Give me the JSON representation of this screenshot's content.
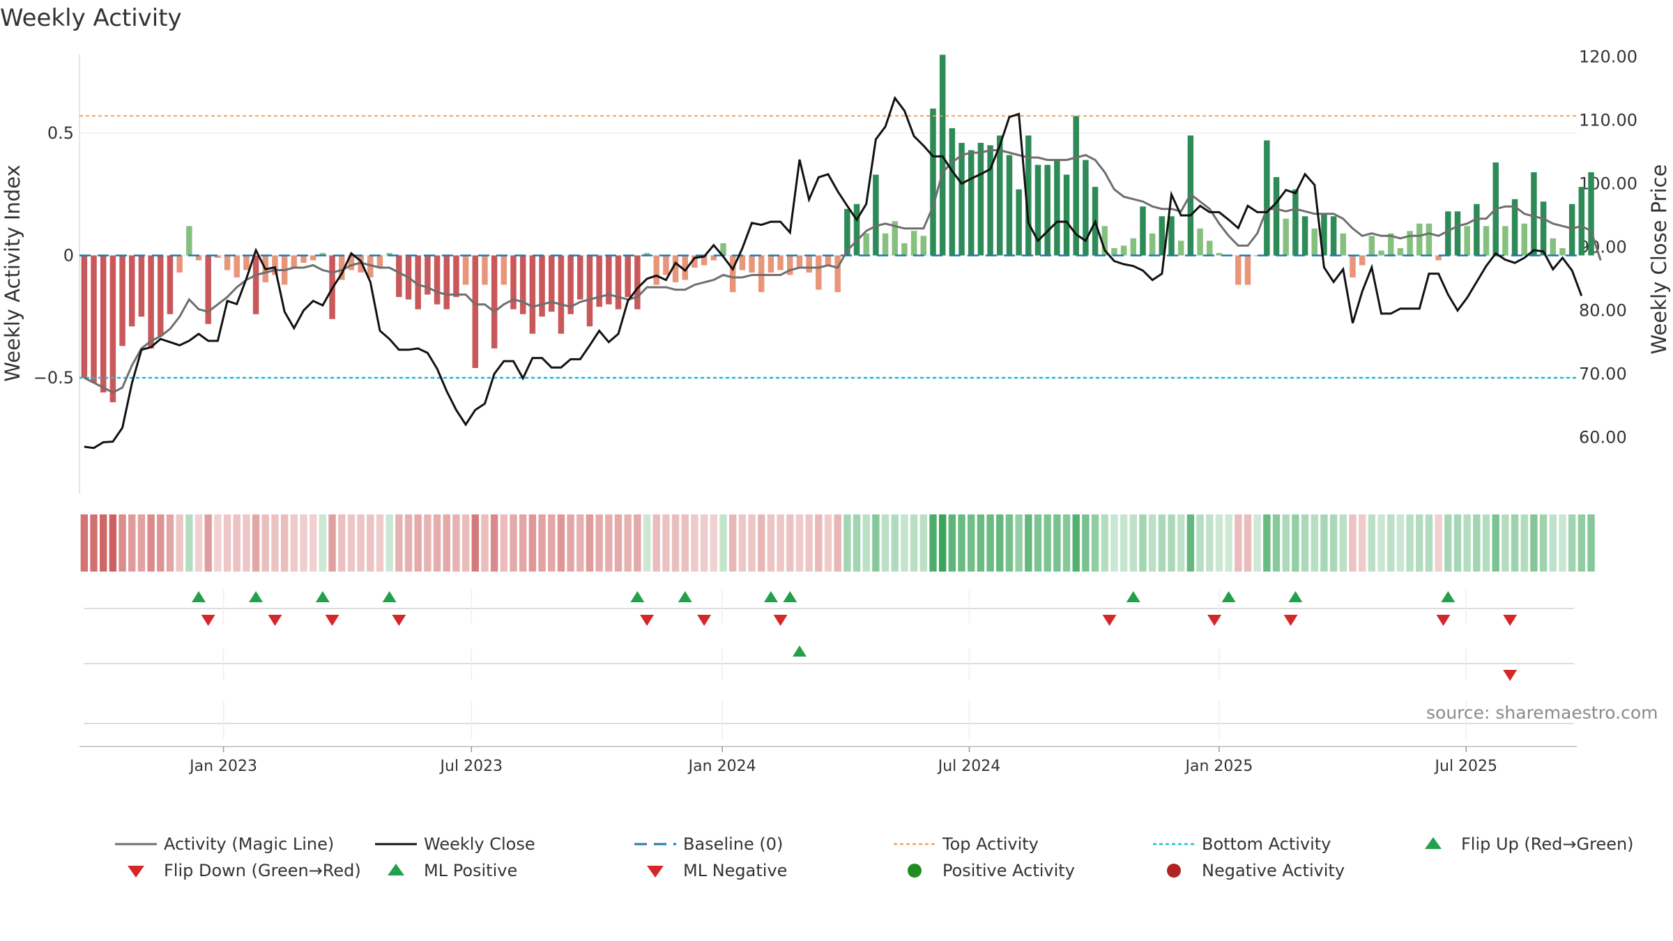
{
  "chart_data": {
    "type": "bar",
    "title": "Weekly Activity",
    "ylabel": "Weekly Activity Index",
    "y2label": "Weekly Close Price",
    "source": "source: sharemaestro.com",
    "ylim": [
      -0.95,
      0.85
    ],
    "y2lim": [
      52.0,
      121.5
    ],
    "y_ticks": [
      {
        "v": 0.5,
        "label": "0.5"
      },
      {
        "v": 0.0,
        "label": "0"
      },
      {
        "v": -0.5,
        "label": "−0.5"
      }
    ],
    "y2_ticks": [
      {
        "v": 120,
        "label": "120.00"
      },
      {
        "v": 110,
        "label": "110.00"
      },
      {
        "v": 100,
        "label": "100.00"
      },
      {
        "v": 90,
        "label": "90.00"
      },
      {
        "v": 80,
        "label": "80.00"
      },
      {
        "v": 70,
        "label": "70.00"
      },
      {
        "v": 60,
        "label": "60.00"
      }
    ],
    "x_ticks": [
      {
        "week": 14.6,
        "label": "Jan 2023"
      },
      {
        "week": 40.6,
        "label": "Jul 2023"
      },
      {
        "week": 66.9,
        "label": "Jan 2024"
      },
      {
        "week": 92.8,
        "label": "Jul 2024"
      },
      {
        "week": 119.0,
        "label": "Jan 2025"
      },
      {
        "week": 144.9,
        "label": "Jul 2025"
      }
    ],
    "top_activity": 0.57,
    "bottom_activity": -0.5,
    "baseline": 0,
    "weeks": 157,
    "activity": [
      -0.5,
      -0.52,
      -0.56,
      -0.6,
      -0.37,
      -0.29,
      -0.25,
      -0.38,
      -0.33,
      -0.24,
      -0.07,
      0.12,
      -0.02,
      -0.28,
      -0.01,
      -0.06,
      -0.09,
      -0.06,
      -0.24,
      -0.11,
      -0.08,
      -0.12,
      -0.05,
      -0.03,
      -0.02,
      0.01,
      -0.26,
      -0.1,
      -0.06,
      -0.07,
      -0.09,
      -0.05,
      0.01,
      -0.17,
      -0.18,
      -0.22,
      -0.16,
      -0.2,
      -0.22,
      -0.17,
      -0.12,
      -0.46,
      -0.12,
      -0.38,
      -0.12,
      -0.22,
      -0.24,
      -0.32,
      -0.25,
      -0.23,
      -0.32,
      -0.24,
      -0.18,
      -0.29,
      -0.21,
      -0.2,
      -0.22,
      -0.17,
      -0.22,
      0.01,
      -0.12,
      -0.08,
      -0.11,
      -0.1,
      -0.05,
      -0.04,
      -0.02,
      0.05,
      -0.15,
      -0.06,
      -0.07,
      -0.15,
      -0.07,
      -0.06,
      -0.08,
      -0.05,
      -0.07,
      -0.14,
      -0.04,
      -0.15,
      0.19,
      0.21,
      0.09,
      0.33,
      0.09,
      0.14,
      0.05,
      0.1,
      0.08,
      0.6,
      0.82,
      0.52,
      0.46,
      0.43,
      0.46,
      0.45,
      0.49,
      0.41,
      0.27,
      0.49,
      0.37,
      0.37,
      0.39,
      0.33,
      0.57,
      0.39,
      0.28,
      0.12,
      0.03,
      0.04,
      0.07,
      0.2,
      0.09,
      0.16,
      0.16,
      0.06,
      0.49,
      0.11,
      0.06,
      0.01,
      0.0,
      -0.12,
      -0.12,
      0.0,
      0.47,
      0.32,
      0.15,
      0.27,
      0.16,
      0.11,
      0.17,
      0.16,
      0.09,
      -0.09,
      -0.04,
      0.08,
      0.02,
      0.09,
      0.03,
      0.1,
      0.13,
      0.13,
      -0.02,
      0.18,
      0.18,
      0.12,
      0.21,
      0.12,
      0.38,
      0.12,
      0.23,
      0.13,
      0.34,
      0.22,
      0.07,
      0.03,
      0.21,
      0.28,
      0.34
    ],
    "activity_colors_note": "Positive weeks drawn green (strong dark, weak light); negative weeks drawn red (strong dark, weak salmon).",
    "magic_line": [
      -0.5,
      -0.52,
      -0.54,
      -0.56,
      -0.54,
      -0.45,
      -0.38,
      -0.35,
      -0.33,
      -0.3,
      -0.25,
      -0.18,
      -0.22,
      -0.23,
      -0.2,
      -0.17,
      -0.13,
      -0.1,
      -0.08,
      -0.07,
      -0.06,
      -0.06,
      -0.05,
      -0.05,
      -0.04,
      -0.06,
      -0.07,
      -0.06,
      -0.04,
      -0.03,
      -0.04,
      -0.05,
      -0.05,
      -0.07,
      -0.09,
      -0.12,
      -0.13,
      -0.15,
      -0.16,
      -0.16,
      -0.16,
      -0.2,
      -0.2,
      -0.23,
      -0.2,
      -0.18,
      -0.19,
      -0.21,
      -0.2,
      -0.19,
      -0.2,
      -0.21,
      -0.19,
      -0.18,
      -0.17,
      -0.16,
      -0.17,
      -0.18,
      -0.17,
      -0.13,
      -0.13,
      -0.13,
      -0.14,
      -0.14,
      -0.12,
      -0.11,
      -0.1,
      -0.08,
      -0.09,
      -0.09,
      -0.08,
      -0.08,
      -0.08,
      -0.08,
      -0.06,
      -0.05,
      -0.05,
      -0.05,
      -0.04,
      -0.05,
      0.02,
      0.06,
      0.1,
      0.12,
      0.13,
      0.12,
      0.11,
      0.11,
      0.11,
      0.2,
      0.34,
      0.38,
      0.41,
      0.42,
      0.42,
      0.43,
      0.43,
      0.42,
      0.41,
      0.4,
      0.4,
      0.39,
      0.39,
      0.39,
      0.4,
      0.41,
      0.39,
      0.34,
      0.27,
      0.24,
      0.23,
      0.22,
      0.2,
      0.19,
      0.19,
      0.18,
      0.25,
      0.22,
      0.19,
      0.13,
      0.08,
      0.04,
      0.04,
      0.09,
      0.19,
      0.19,
      0.18,
      0.19,
      0.18,
      0.17,
      0.17,
      0.17,
      0.15,
      0.11,
      0.08,
      0.09,
      0.08,
      0.08,
      0.07,
      0.08,
      0.08,
      0.09,
      0.08,
      0.1,
      0.12,
      0.13,
      0.15,
      0.15,
      0.19,
      0.2,
      0.2,
      0.17,
      0.16,
      0.15,
      0.13,
      0.12,
      0.11,
      0.12,
      0.1,
      -0.02
    ],
    "weekly_close": [
      58.5,
      58.3,
      59.2,
      59.3,
      61.5,
      68.5,
      73.8,
      74.2,
      75.5,
      75.0,
      74.5,
      75.2,
      76.3,
      75.2,
      75.2,
      81.5,
      81.0,
      85.0,
      89.5,
      86.5,
      86.8,
      79.8,
      77.2,
      80.0,
      81.5,
      80.8,
      83.5,
      85.8,
      89.0,
      87.8,
      84.5,
      76.8,
      75.5,
      73.8,
      73.8,
      74.0,
      73.3,
      70.8,
      67.3,
      64.3,
      62.0,
      64.3,
      65.3,
      70.0,
      72.0,
      72.0,
      69.3,
      72.5,
      72.5,
      71.0,
      71.0,
      72.3,
      72.3,
      74.5,
      76.8,
      75.0,
      76.3,
      81.5,
      83.5,
      85.0,
      85.5,
      84.8,
      87.5,
      86.3,
      88.3,
      88.5,
      90.3,
      88.5,
      86.5,
      89.8,
      93.8,
      93.5,
      94.0,
      94.0,
      92.3,
      103.8,
      97.5,
      101.0,
      101.5,
      98.8,
      96.5,
      94.3,
      96.8,
      107.0,
      109.0,
      113.5,
      111.5,
      107.5,
      106.0,
      104.3,
      104.3,
      102.0,
      100.0,
      100.8,
      101.5,
      102.3,
      106.0,
      110.5,
      111.0,
      93.8,
      91.0,
      92.5,
      94.0,
      94.0,
      92.0,
      91.0,
      94.0,
      89.5,
      87.8,
      87.3,
      87.0,
      86.3,
      84.8,
      85.8,
      98.3,
      95.0,
      95.0,
      96.5,
      95.5,
      95.5,
      94.3,
      93.0,
      96.5,
      95.5,
      95.5,
      97.0,
      99.0,
      98.5,
      101.5,
      99.8,
      86.8,
      84.5,
      86.5,
      78.0,
      83.0,
      86.8,
      79.5,
      79.5,
      80.3,
      80.3,
      80.3,
      85.8,
      85.8,
      82.5,
      80.0,
      82.0,
      84.5,
      87.0,
      89.0,
      88.0,
      87.5,
      88.3,
      89.5,
      89.3,
      86.5,
      88.3,
      86.3,
      82.3
    ],
    "flip_up": [
      12.0,
      18.0,
      25.0,
      32.0,
      58.0,
      63.0,
      72.0,
      74.0,
      110.0,
      120.0,
      127.0,
      143.0
    ],
    "flip_down": [
      13.0,
      20.0,
      26.0,
      33.0,
      59.0,
      65.0,
      73.0,
      107.5,
      118.5,
      126.5,
      142.5,
      149.5
    ],
    "ml_positive": [
      75.0
    ],
    "ml_negative": [
      149.5
    ],
    "legend": [
      "Activity (Magic Line)",
      "Weekly Close",
      "Baseline (0)",
      "Top Activity",
      "Bottom Activity",
      "Flip Up (Red→Green)",
      "Flip Down (Green→Red)",
      "ML Positive",
      "ML Negative",
      "Positive Activity",
      "Negative Activity"
    ],
    "colors": {
      "pos_strong": "#2e8b57",
      "pos_weak": "#86c07e",
      "neg_strong": "#c9585a",
      "neg_weak": "#e8967a",
      "magic_line": "#6e6e6e",
      "close": "#111111",
      "baseline": "#1f77b4",
      "top": "#f0a060",
      "bottom": "#17becf",
      "marker_up": "#22a04b",
      "marker_down": "#d62728",
      "dot_pos": "#228b22",
      "dot_neg": "#b22222"
    }
  }
}
